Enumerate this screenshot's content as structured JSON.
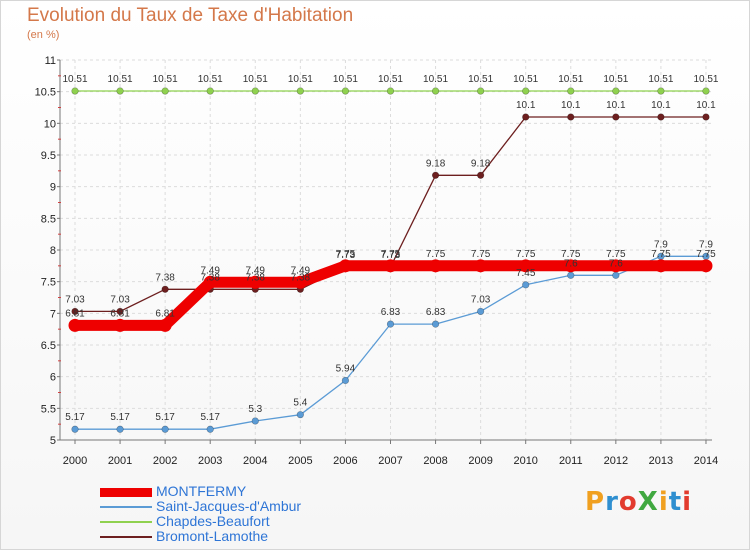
{
  "header": {
    "title": "Evolution du Taux de Taxe d'Habitation",
    "unit": "(en %)"
  },
  "logo": {
    "text": "ProXiti",
    "letter_colors": [
      "#f0a020",
      "#2f8fd0",
      "#e23b2e",
      "#40a840",
      "#f0a020",
      "#2f8fd0",
      "#e23b2e"
    ]
  },
  "chart_data": {
    "type": "line",
    "title": "Evolution du Taux de Taxe d'Habitation",
    "subtitle": "(en %)",
    "x": [
      "2000",
      "2001",
      "2002",
      "2003",
      "2004",
      "2005",
      "2006",
      "2007",
      "2008",
      "2009",
      "2010",
      "2011",
      "2012",
      "2013",
      "2014"
    ],
    "ylim": [
      5,
      11
    ],
    "yticks": [
      "5",
      "5.5",
      "6",
      "6.5",
      "7",
      "7.5",
      "8",
      "8.5",
      "9",
      "9.5",
      "10",
      "10.5",
      "11"
    ],
    "grid": true,
    "legend_position": "bottom-left",
    "series": [
      {
        "name": "Chapdes-Beaufort",
        "color": "#8fd14f",
        "values": [
          10.51,
          10.51,
          10.51,
          10.51,
          10.51,
          10.51,
          10.51,
          10.51,
          10.51,
          10.51,
          10.51,
          10.51,
          10.51,
          10.51,
          10.51
        ]
      },
      {
        "name": "Bromont-Lamothe",
        "color": "#6d1f1f",
        "values": [
          7.03,
          7.03,
          7.38,
          7.38,
          7.38,
          7.38,
          7.73,
          7.73,
          9.18,
          9.18,
          10.1,
          10.1,
          10.1,
          10.1,
          10.1
        ]
      },
      {
        "name": "Saint-Jacques-d'Ambur",
        "color": "#5b9bd5",
        "values": [
          5.17,
          5.17,
          5.17,
          5.17,
          5.3,
          5.4,
          5.94,
          6.83,
          6.83,
          7.03,
          7.45,
          7.6,
          7.6,
          7.9,
          7.9
        ]
      },
      {
        "name": "MONTFERMY",
        "color": "#ee0000",
        "values": [
          6.81,
          6.81,
          6.81,
          7.49,
          7.49,
          7.49,
          7.75,
          7.75,
          7.75,
          7.75,
          7.75,
          7.75,
          7.75,
          7.75,
          7.75
        ]
      }
    ],
    "legend": [
      {
        "name": "MONTFERMY",
        "color": "#ee0000",
        "label_color": "#2e75d6"
      },
      {
        "name": "Saint-Jacques-d'Ambur",
        "color": "#5b9bd5",
        "label_color": "#2e75d6"
      },
      {
        "name": "Chapdes-Beaufort",
        "color": "#8fd14f",
        "label_color": "#2e75d6"
      },
      {
        "name": "Bromont-Lamothe",
        "color": "#6d1f1f",
        "label_color": "#2e75d6"
      }
    ]
  }
}
